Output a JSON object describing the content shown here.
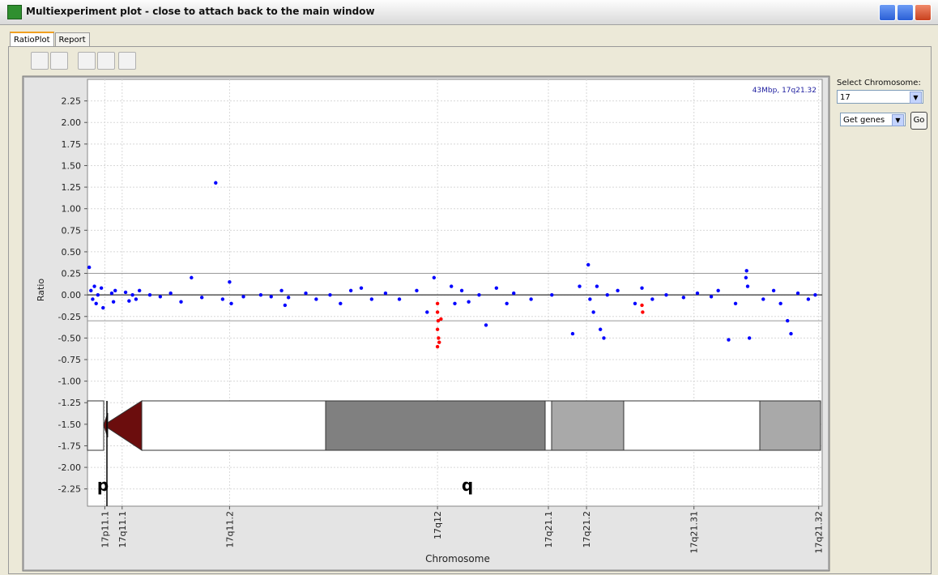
{
  "window": {
    "title": "Multiexperiment plot - close to attach back to the main window"
  },
  "tabs": [
    "RatioPlot",
    "Report"
  ],
  "sidebar": {
    "chromosome_label": "Select Chromosome:",
    "chromosome": "17",
    "genes_option": "Get genes",
    "go_button": "Go"
  },
  "chart_data": {
    "type": "scatter",
    "annotation": "43Mbp, 17q21.32",
    "xlabel": "Chromosome",
    "ylabel": "Ratio",
    "arm_labels": [
      "p",
      "q"
    ],
    "xlim": [
      22,
      43.2
    ],
    "ylim": [
      -2.45,
      2.5
    ],
    "xticks": [
      {
        "value": 22.5,
        "label": "17p11.1"
      },
      {
        "value": 23.0,
        "label": "17q11.1"
      },
      {
        "value": 26.1,
        "label": "17q11.2"
      },
      {
        "value": 32.1,
        "label": "17q12"
      },
      {
        "value": 35.3,
        "label": "17q21.1"
      },
      {
        "value": 36.4,
        "label": "17q21.2"
      },
      {
        "value": 39.5,
        "label": "17q21.31"
      },
      {
        "value": 43.1,
        "label": "17q21.32"
      }
    ],
    "yticks": [
      2.25,
      {
        "value": 2,
        "label": "2.00"
      },
      1.75,
      {
        "value": 1.5,
        "label": "1.50"
      },
      1.25,
      {
        "value": 1,
        "label": "1.00"
      },
      0.75,
      {
        "value": 0.5,
        "label": "0.50"
      },
      0.25,
      {
        "value": 0,
        "label": "0.00"
      },
      -0.25,
      {
        "value": -0.5,
        "label": "-0.50"
      },
      -0.75,
      {
        "value": -1,
        "label": "-1.00"
      },
      -1.25,
      {
        "value": -1.5,
        "label": "-1.50"
      },
      -1.75,
      {
        "value": -2,
        "label": "-2.00"
      },
      -2.25
    ],
    "grid": true,
    "reference_lines": [
      0.25,
      0,
      -0.3
    ],
    "series": [
      {
        "color": "#0000ff",
        "x": [
          22.05,
          22.1,
          22.15,
          22.2,
          22.25,
          22.3,
          22.4,
          22.45,
          22.7,
          22.75,
          22.8,
          23.1,
          23.2,
          23.3,
          23.4,
          23.5,
          23.8,
          24.1,
          24.4,
          24.7,
          25.0,
          25.3,
          25.7,
          25.9,
          26.1,
          26.15,
          26.5,
          27.0,
          27.3,
          27.6,
          27.7,
          27.8,
          28.3,
          28.6,
          29.0,
          29.3,
          29.6,
          29.9,
          30.2,
          30.6,
          31.0,
          31.5,
          31.8,
          32.0,
          32.5,
          32.6,
          32.8,
          33.0,
          33.3,
          33.5,
          33.8,
          34.1,
          34.3,
          34.8,
          35.4,
          36.0,
          36.2,
          36.45,
          36.5,
          36.6,
          36.7,
          36.8,
          36.9,
          37.0,
          37.3,
          37.8,
          38.0,
          38.3,
          38.7,
          39.2,
          39.6,
          40.0,
          40.2,
          40.5,
          40.7,
          41.0,
          41.02,
          41.05,
          41.1,
          41.5,
          41.8,
          42.0,
          42.2,
          42.3,
          42.5,
          42.8,
          43.0
        ],
        "values": [
          0.32,
          0.05,
          -0.05,
          0.1,
          -0.1,
          0.0,
          0.08,
          -0.15,
          0.02,
          -0.08,
          0.05,
          0.03,
          -0.07,
          0.0,
          -0.05,
          0.05,
          0.0,
          -0.02,
          0.02,
          -0.08,
          0.2,
          -0.03,
          1.3,
          -0.05,
          0.15,
          -0.1,
          -0.02,
          0.0,
          -0.02,
          0.05,
          -0.12,
          -0.03,
          0.02,
          -0.05,
          0.0,
          -0.1,
          0.05,
          0.08,
          -0.05,
          0.02,
          -0.05,
          0.05,
          -0.2,
          0.2,
          0.1,
          -0.1,
          0.05,
          -0.08,
          0.0,
          -0.35,
          0.08,
          -0.1,
          0.02,
          -0.05,
          0.0,
          -0.45,
          0.1,
          0.35,
          -0.05,
          -0.2,
          0.1,
          -0.4,
          -0.5,
          0.0,
          0.05,
          -0.1,
          0.08,
          -0.05,
          0.0,
          -0.03,
          0.02,
          -0.02,
          0.05,
          -0.52,
          -0.1,
          0.2,
          0.28,
          0.1,
          -0.5,
          -0.05,
          0.05,
          -0.1,
          -0.3,
          -0.45,
          0.02,
          -0.05,
          0.0
        ]
      },
      {
        "color": "#ff0000",
        "x": [
          32.1,
          32.1,
          32.12,
          32.1,
          32.13,
          32.1,
          32.15,
          32.2,
          38.0,
          38.02
        ],
        "values": [
          -0.1,
          -0.2,
          -0.3,
          -0.4,
          -0.5,
          -0.6,
          -0.55,
          -0.28,
          -0.12,
          -0.2
        ]
      }
    ]
  }
}
